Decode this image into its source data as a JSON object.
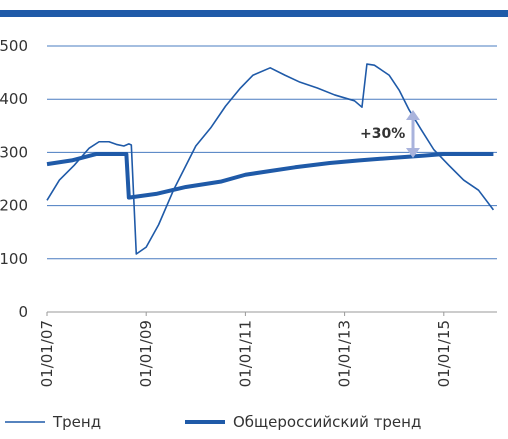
{
  "chart_data": {
    "type": "line",
    "xlim": [
      2007,
      2016.1
    ],
    "xticks": [
      {
        "value": 2007,
        "label": "01/01/07"
      },
      {
        "value": 2009,
        "label": "01/01/09"
      },
      {
        "value": 2011,
        "label": "01/01/11"
      },
      {
        "value": 2013,
        "label": "01/01/13"
      },
      {
        "value": 2015,
        "label": "01/01/15"
      }
    ],
    "ylim": [
      0,
      500
    ],
    "yticks": [
      0,
      100,
      200,
      300,
      400,
      500
    ],
    "grid": true,
    "legend": "bottom",
    "annotation": "+30%",
    "series": [
      {
        "name": "Тренд",
        "color": "#1f5aa8",
        "width": "thin",
        "x": [
          2007.0,
          2007.25,
          2007.55,
          2007.85,
          2008.05,
          2008.25,
          2008.4,
          2008.55,
          2008.65,
          2008.7,
          2008.8,
          2009.0,
          2009.25,
          2009.55,
          2010.0,
          2010.3,
          2010.6,
          2010.9,
          2011.15,
          2011.5,
          2011.8,
          2012.1,
          2012.45,
          2012.8,
          2013.2,
          2013.35,
          2013.45,
          2013.6,
          2013.9,
          2014.1,
          2014.3,
          2014.55,
          2014.8,
          2015.1,
          2015.4,
          2015.7,
          2016.0
        ],
        "values": [
          210,
          248,
          276,
          308,
          320,
          320,
          315,
          312,
          316,
          314,
          109,
          122,
          164,
          229,
          312,
          346,
          387,
          421,
          445,
          459,
          445,
          432,
          421,
          408,
          397,
          385,
          466,
          464,
          445,
          417,
          380,
          342,
          305,
          276,
          248,
          229,
          192
        ]
      },
      {
        "name": "Общероссийский тренд",
        "color": "#1f5aa8",
        "width": "thick",
        "x": [
          2007.0,
          2007.5,
          2008.0,
          2008.6,
          2008.65,
          2009.2,
          2009.8,
          2010.5,
          2011.0,
          2011.5,
          2012.0,
          2012.7,
          2013.3,
          2014.0,
          2014.6,
          2015.0,
          2016.0
        ],
        "values": [
          278,
          285,
          297,
          297,
          215,
          222,
          235,
          245,
          258,
          265,
          272,
          280,
          285,
          290,
          294,
          297,
          297
        ]
      }
    ]
  }
}
